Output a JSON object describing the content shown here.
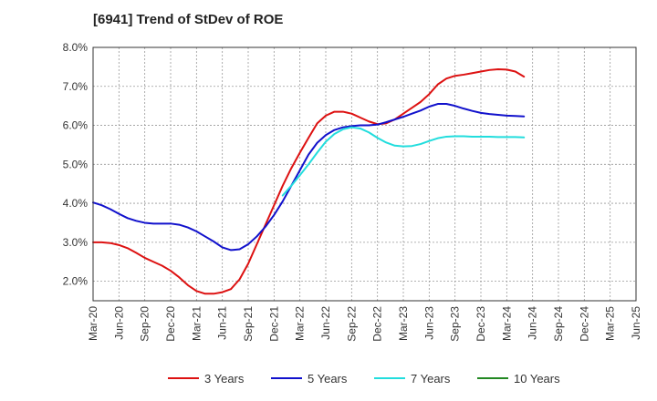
{
  "chart_data": {
    "type": "line",
    "title": "[6941]  Trend of StDev of ROE",
    "xlabel": "",
    "ylabel": "",
    "ylim": [
      1.5,
      8.0
    ],
    "y_ticks": [
      2.0,
      3.0,
      4.0,
      5.0,
      6.0,
      7.0,
      8.0
    ],
    "y_tick_labels": [
      "2.0%",
      "3.0%",
      "4.0%",
      "5.0%",
      "6.0%",
      "7.0%",
      "8.0%"
    ],
    "x_tick_labels": [
      "Mar-20",
      "Jun-20",
      "Sep-20",
      "Dec-20",
      "Mar-21",
      "Jun-21",
      "Sep-21",
      "Dec-21",
      "Mar-22",
      "Jun-22",
      "Sep-22",
      "Dec-22",
      "Mar-23",
      "Jun-23",
      "Sep-23",
      "Dec-23",
      "Mar-24",
      "Jun-24",
      "Sep-24",
      "Dec-24",
      "Mar-25",
      "Jun-25"
    ],
    "grid": true,
    "legend_position": "bottom",
    "series": [
      {
        "name": "3 Years",
        "color": "#dd1111",
        "values": [
          3.0,
          3.0,
          2.98,
          2.93,
          2.85,
          2.73,
          2.6,
          2.5,
          2.4,
          2.27,
          2.1,
          1.9,
          1.75,
          1.68,
          1.68,
          1.72,
          1.8,
          2.05,
          2.45,
          2.95,
          3.45,
          3.95,
          4.45,
          4.9,
          5.3,
          5.68,
          6.05,
          6.25,
          6.35,
          6.35,
          6.3,
          6.2,
          6.1,
          6.03,
          6.05,
          6.15,
          6.3,
          6.45,
          6.6,
          6.8,
          7.05,
          7.2,
          7.27,
          7.3,
          7.34,
          7.38,
          7.42,
          7.44,
          7.43,
          7.38,
          7.25
        ]
      },
      {
        "name": "5 Years",
        "color": "#1111cc",
        "values": [
          4.02,
          3.95,
          3.85,
          3.73,
          3.62,
          3.55,
          3.5,
          3.48,
          3.48,
          3.48,
          3.45,
          3.38,
          3.28,
          3.15,
          3.02,
          2.87,
          2.8,
          2.82,
          2.95,
          3.15,
          3.4,
          3.7,
          4.05,
          4.45,
          4.85,
          5.25,
          5.55,
          5.75,
          5.88,
          5.95,
          5.98,
          6.0,
          6.0,
          6.02,
          6.08,
          6.15,
          6.22,
          6.3,
          6.38,
          6.48,
          6.55,
          6.55,
          6.5,
          6.43,
          6.37,
          6.32,
          6.29,
          6.27,
          6.25,
          6.24,
          6.23
        ]
      },
      {
        "name": "7 Years",
        "color": "#22dddd",
        "values": [
          null,
          null,
          null,
          null,
          null,
          null,
          null,
          null,
          null,
          null,
          null,
          null,
          null,
          null,
          null,
          null,
          null,
          null,
          null,
          null,
          null,
          null,
          4.2,
          4.45,
          4.72,
          5.0,
          5.3,
          5.58,
          5.78,
          5.9,
          5.95,
          5.92,
          5.82,
          5.68,
          5.56,
          5.48,
          5.46,
          5.47,
          5.52,
          5.6,
          5.67,
          5.71,
          5.72,
          5.72,
          5.71,
          5.71,
          5.71,
          5.7,
          5.7,
          5.7,
          5.69
        ]
      },
      {
        "name": "10 Years",
        "color": "#228822",
        "values": []
      }
    ]
  }
}
